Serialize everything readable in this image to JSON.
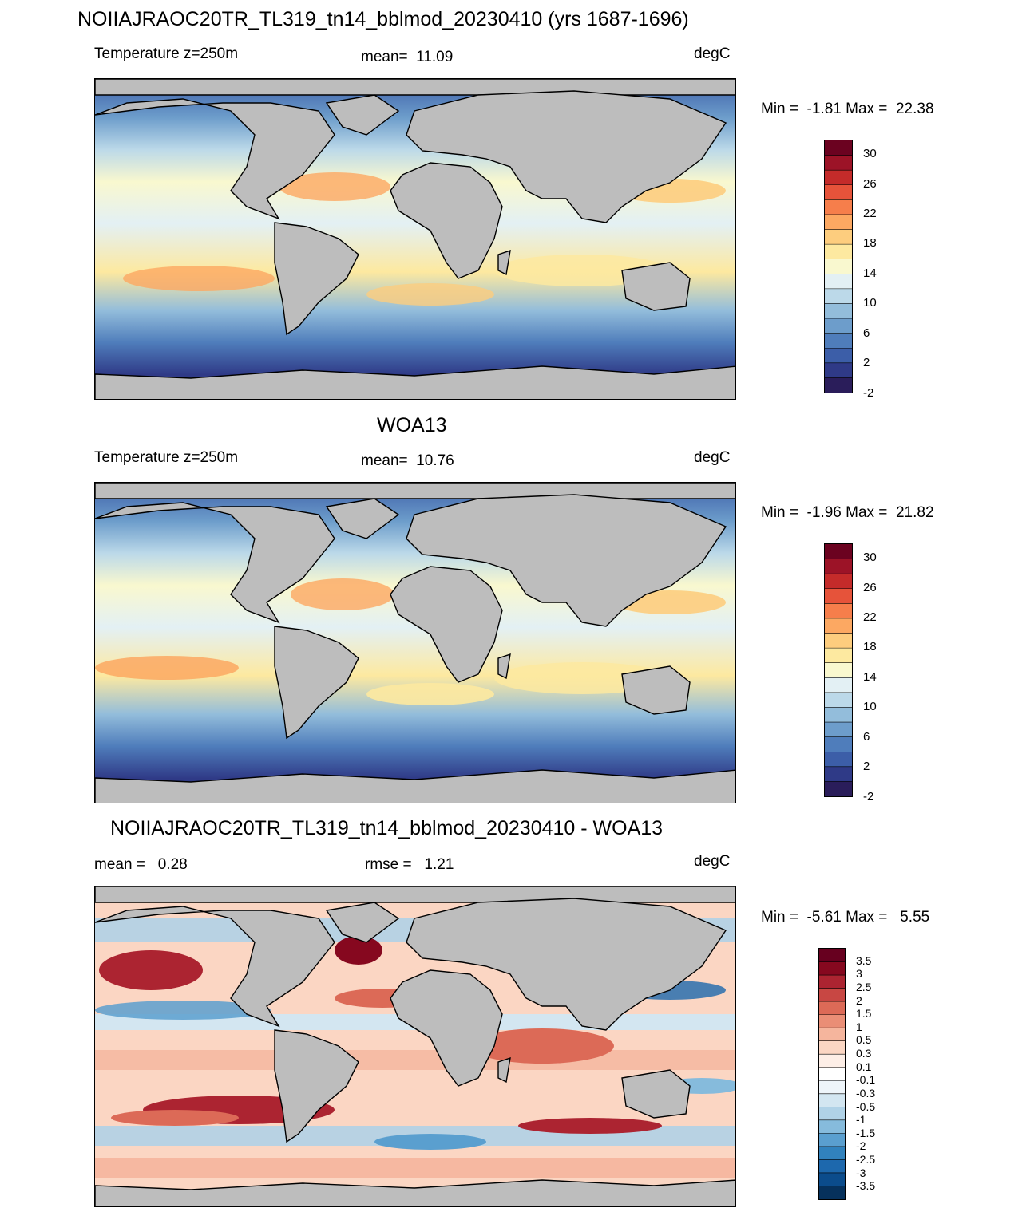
{
  "colors": {
    "land": "#bdbdbd",
    "temp_scale": [
      "#2a1d5a",
      "#2f3a87",
      "#3c5ea8",
      "#4f7dbb",
      "#6d9dcb",
      "#93bddb",
      "#bcd9e9",
      "#e3f0f4",
      "#f9f8cf",
      "#fde9a0",
      "#fdcd7e",
      "#fca862",
      "#f67e4b",
      "#e6533a",
      "#c42b2a",
      "#9c1327",
      "#6b0220"
    ],
    "diff_scale": [
      "#06315c",
      "#0b4c8c",
      "#1d68ad",
      "#3182bd",
      "#5a9fcf",
      "#86bbdc",
      "#b0d2e7",
      "#d3e6f1",
      "#eef5fa",
      "#ffffff",
      "#fdeee6",
      "#fbd6c3",
      "#f5b59d",
      "#ea8e76",
      "#dc6a57",
      "#c84743",
      "#ac2431",
      "#86081f",
      "#67001f"
    ]
  },
  "chart_data": [
    {
      "type": "heatmap",
      "title": "NOIIAJRAOC20TR_TL319_tn14_bblmod_20230410 (yrs 1687-1696)",
      "left_label": "Temperature z=250m",
      "center_label": "mean=  11.09",
      "units": "degC",
      "minmax": "Min =  -1.81 Max =  22.38",
      "mean": 11.09,
      "min": -1.81,
      "max": 22.38,
      "colorbar_ticks": [
        "30",
        "26",
        "22",
        "18",
        "14",
        "10",
        "6",
        "2",
        "-2"
      ],
      "colorbar_levels": 17
    },
    {
      "type": "heatmap",
      "title": "WOA13",
      "left_label": "Temperature z=250m",
      "center_label": "mean=  10.76",
      "units": "degC",
      "minmax": "Min =  -1.96 Max =  21.82",
      "mean": 10.76,
      "min": -1.96,
      "max": 21.82,
      "colorbar_ticks": [
        "30",
        "26",
        "22",
        "18",
        "14",
        "10",
        "6",
        "2",
        "-2"
      ],
      "colorbar_levels": 17
    },
    {
      "type": "heatmap",
      "title": "NOIIAJRAOC20TR_TL319_tn14_bblmod_20230410 - WOA13",
      "left_label": "mean =   0.28",
      "center_label": "rmse =   1.21",
      "units": "degC",
      "minmax": "Min =  -5.61 Max =   5.55",
      "mean": 0.28,
      "rmse": 1.21,
      "min": -5.61,
      "max": 5.55,
      "colorbar_ticks": [
        "3.5",
        "3",
        "2.5",
        "2",
        "1.5",
        "1",
        "0.5",
        "0.3",
        "0.1",
        "-0.1",
        "-0.3",
        "-0.5",
        "-1",
        "-1.5",
        "-2",
        "-2.5",
        "-3",
        "-3.5"
      ],
      "colorbar_levels": 19
    }
  ]
}
